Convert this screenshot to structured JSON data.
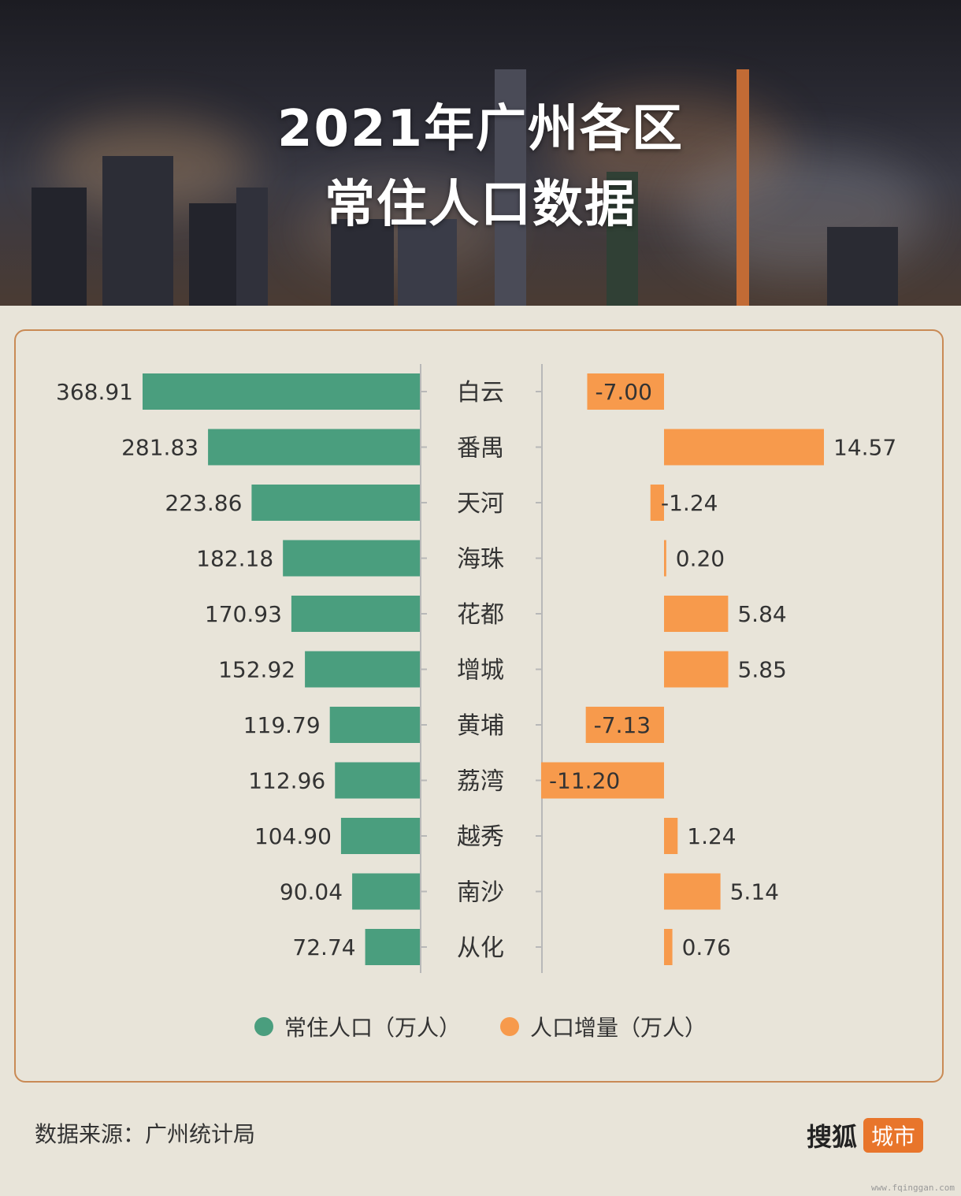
{
  "header": {
    "title_line1": "2021年广州各区",
    "title_line2": "常住人口数据"
  },
  "colors": {
    "population": "#4a9e7e",
    "change": "#f79a4c",
    "axis": "#b8b8b8",
    "border": "#c98a55"
  },
  "chart_data": {
    "type": "bar",
    "categories": [
      "白云",
      "番禺",
      "天河",
      "海珠",
      "花都",
      "增城",
      "黄埔",
      "荔湾",
      "越秀",
      "南沙",
      "从化"
    ],
    "series": [
      {
        "name": "常住人口（万人）",
        "values": [
          368.91,
          281.83,
          223.86,
          182.18,
          170.93,
          152.92,
          119.79,
          112.96,
          104.9,
          90.04,
          72.74
        ],
        "labels": [
          "368.91",
          "281.83",
          "223.86",
          "182.18",
          "170.93",
          "152.92",
          "119.79",
          "112.96",
          "104.90",
          "90.04",
          "72.74"
        ]
      },
      {
        "name": "人口增量（万人）",
        "values": [
          -7.0,
          14.57,
          -1.24,
          0.2,
          5.84,
          5.85,
          -7.13,
          -11.2,
          1.24,
          5.14,
          0.76
        ],
        "labels": [
          "-7.00",
          "14.57",
          "-1.24",
          "0.20",
          "5.84",
          "5.85",
          "-7.13",
          "-11.20",
          "1.24",
          "5.14",
          "0.76"
        ]
      }
    ],
    "orientation": "horizontal",
    "grid": false,
    "legend_position": "bottom"
  },
  "legend": {
    "population": "常住人口（万人）",
    "change": "人口增量（万人）"
  },
  "footer": {
    "source": "数据来源：广州统计局",
    "brand_main": "搜狐",
    "brand_sub": "城市",
    "watermark": "www.fqinggan.com"
  }
}
